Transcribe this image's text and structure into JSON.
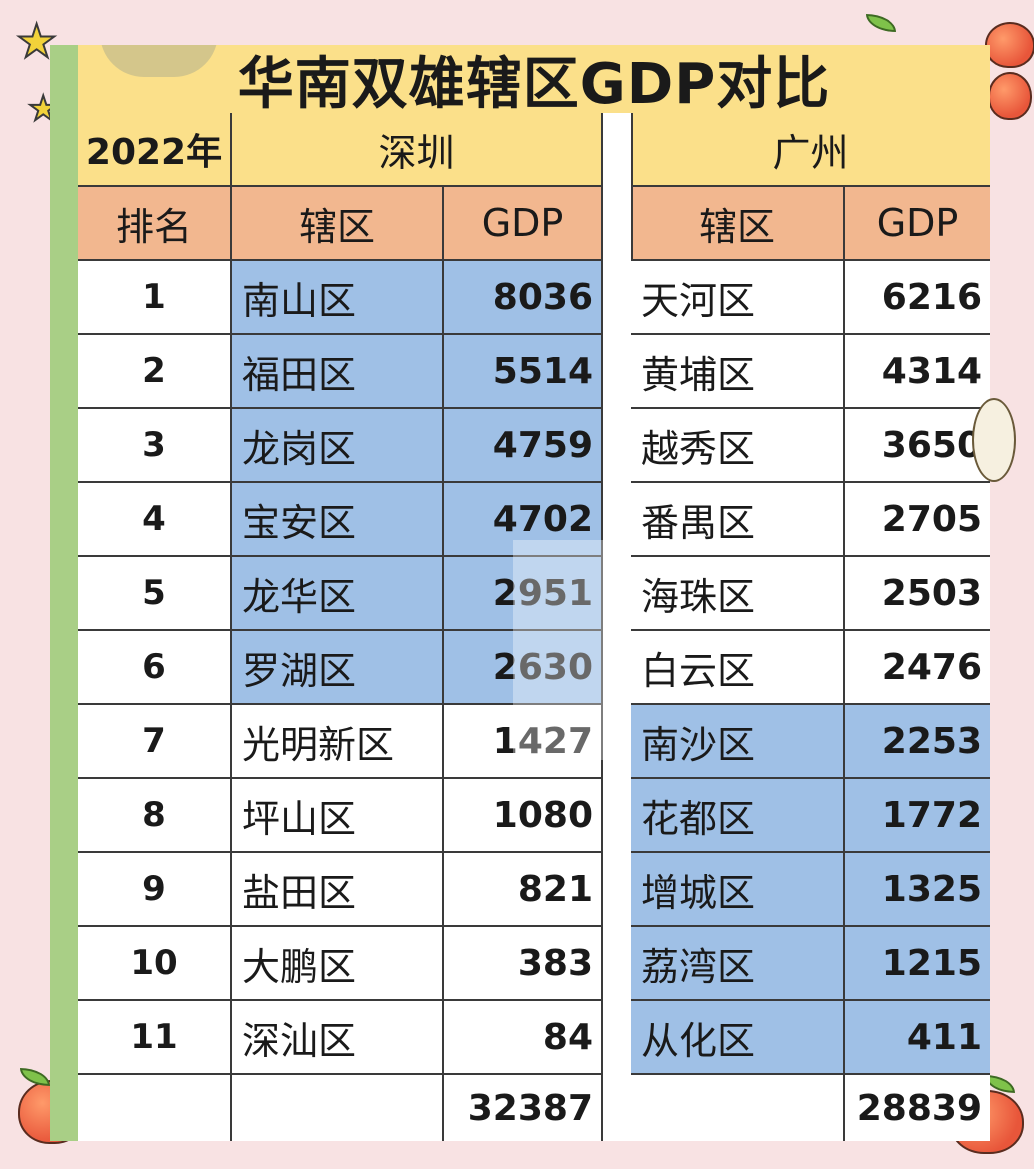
{
  "title": "华南双雄辖区GDP对比",
  "year_label": "2022年",
  "cities": [
    "深圳",
    "广州"
  ],
  "headers": {
    "rank": "排名",
    "district": "辖区",
    "gdp": "GDP"
  },
  "rows": [
    {
      "rank": "1",
      "sz_name": "南山区",
      "sz_gdp": "8036",
      "gz_name": "天河区",
      "gz_gdp": "6216"
    },
    {
      "rank": "2",
      "sz_name": "福田区",
      "sz_gdp": "5514",
      "gz_name": "黄埔区",
      "gz_gdp": "4314"
    },
    {
      "rank": "3",
      "sz_name": "龙岗区",
      "sz_gdp": "4759",
      "gz_name": "越秀区",
      "gz_gdp": "3650"
    },
    {
      "rank": "4",
      "sz_name": "宝安区",
      "sz_gdp": "4702",
      "gz_name": "番禺区",
      "gz_gdp": "2705"
    },
    {
      "rank": "5",
      "sz_name": "龙华区",
      "sz_gdp": "2951",
      "gz_name": "海珠区",
      "gz_gdp": "2503"
    },
    {
      "rank": "6",
      "sz_name": "罗湖区",
      "sz_gdp": "2630",
      "gz_name": "白云区",
      "gz_gdp": "2476"
    },
    {
      "rank": "7",
      "sz_name": "光明新区",
      "sz_gdp": "1427",
      "gz_name": "南沙区",
      "gz_gdp": "2253"
    },
    {
      "rank": "8",
      "sz_name": "坪山区",
      "sz_gdp": "1080",
      "gz_name": "花都区",
      "gz_gdp": "1772"
    },
    {
      "rank": "9",
      "sz_name": "盐田区",
      "sz_gdp": "821",
      "gz_name": "增城区",
      "gz_gdp": "1325"
    },
    {
      "rank": "10",
      "sz_name": "大鹏区",
      "sz_gdp": "383",
      "gz_name": "荔湾区",
      "gz_gdp": "1215"
    },
    {
      "rank": "11",
      "sz_name": "深汕区",
      "sz_gdp": "84",
      "gz_name": "从化区",
      "gz_gdp": "411"
    }
  ],
  "totals": {
    "sz": "32387",
    "gz": "28839"
  },
  "colors": {
    "header_yellow": "#fbe08a",
    "header_salmon": "#f2b78f",
    "highlight_blue": "#9fc0e6"
  }
}
